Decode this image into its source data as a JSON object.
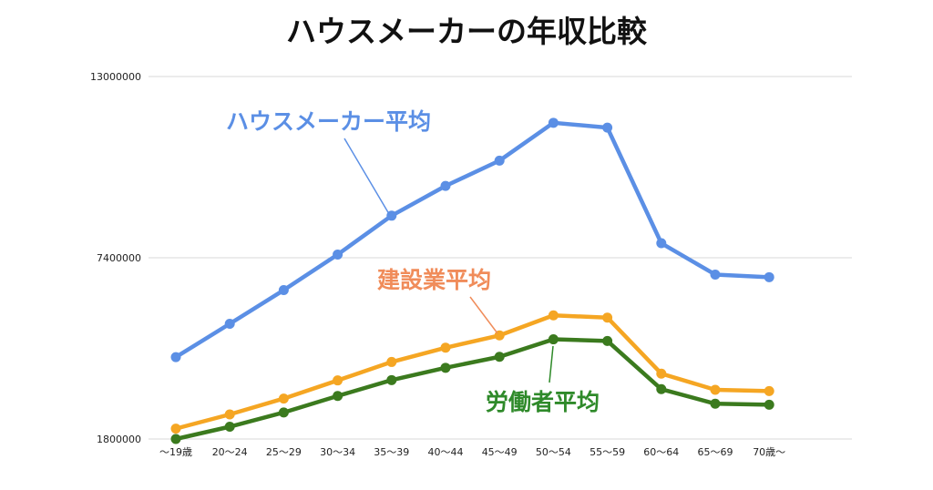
{
  "chart_data": {
    "type": "line",
    "title": "ハウスメーカーの年収比較",
    "xlabel": "",
    "ylabel": "",
    "ylim": [
      1800000,
      13000000
    ],
    "yticks": [
      "1800000",
      "7400000",
      "13000000"
    ],
    "categories": [
      "〜19歳",
      "20〜24",
      "25〜29",
      "30〜34",
      "35〜39",
      "40〜44",
      "45〜49",
      "50〜54",
      "55〜59",
      "60〜64",
      "65〜69",
      "70歳〜"
    ],
    "grid": true,
    "legend": "annotations",
    "series": [
      {
        "name": "ハウスメーカー平均",
        "color": "#5b8fe5",
        "values": [
          4330000,
          5360000,
          6400000,
          7500000,
          8700000,
          9620000,
          10400000,
          11570000,
          11420000,
          7850000,
          6880000,
          6800000
        ]
      },
      {
        "name": "建設業平均",
        "color": "#f5a623",
        "values": [
          2120000,
          2560000,
          3050000,
          3610000,
          4180000,
          4620000,
          5000000,
          5620000,
          5550000,
          3820000,
          3320000,
          3280000
        ]
      },
      {
        "name": "労働者平均",
        "color": "#3b7a1e",
        "values": [
          1800000,
          2180000,
          2620000,
          3130000,
          3620000,
          4000000,
          4340000,
          4880000,
          4830000,
          3340000,
          2890000,
          2860000
        ]
      }
    ]
  }
}
